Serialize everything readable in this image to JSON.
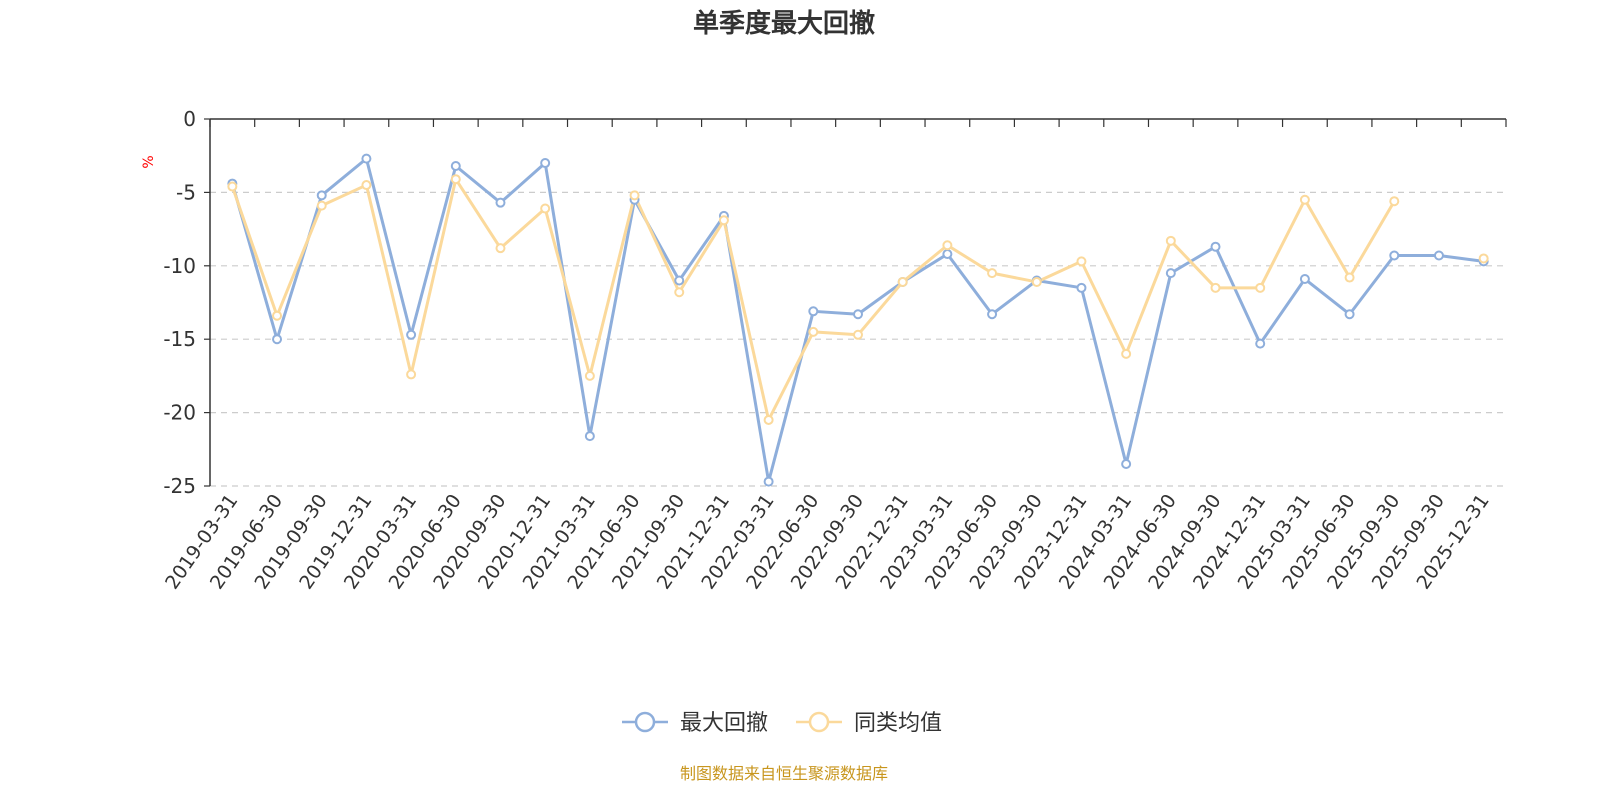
{
  "chart_data": {
    "type": "line",
    "title": "单季度最大回撤",
    "yunit": "%",
    "ylim": [
      -25,
      0
    ],
    "yticks": [
      0,
      -5,
      -10,
      -15,
      -20,
      -25
    ],
    "grid": "horizontal-dashed",
    "legend_position": "bottom",
    "categories": [
      "2019-03-31",
      "2019-06-30",
      "2019-09-30",
      "2019-12-31",
      "2020-03-31",
      "2020-06-30",
      "2020-09-30",
      "2020-12-31",
      "2021-03-31",
      "2021-06-30",
      "2021-09-30",
      "2021-12-31",
      "2022-03-31",
      "2022-06-30",
      "2022-09-30",
      "2022-12-31",
      "2023-03-31",
      "2023-06-30",
      "2023-09-30",
      "2023-12-31",
      "2024-03-31",
      "2024-06-30",
      "2024-09-30",
      "2024-12-31",
      "2025-03-31",
      "2025-06-30",
      "2025-09-30",
      "2025-09-30",
      "2025-12-31"
    ],
    "series": [
      {
        "name": "最大回撤",
        "color": "#8eaedb",
        "values": [
          -4.4,
          -15.0,
          -5.2,
          -2.7,
          -14.7,
          -3.2,
          -5.7,
          -3.0,
          -21.6,
          -5.5,
          -11.0,
          -6.6,
          -24.7,
          -13.1,
          -13.3,
          -11.1,
          -9.2,
          -13.3,
          -11.0,
          -11.5,
          -23.5,
          -10.5,
          -8.7,
          -15.3,
          -10.9,
          -13.3,
          -9.3,
          -9.3,
          -9.7
        ]
      },
      {
        "name": "同类均值",
        "color": "#fbd99b",
        "values": [
          -4.6,
          -13.4,
          -5.9,
          -4.5,
          -17.4,
          -4.1,
          -8.8,
          -6.1,
          -17.5,
          -5.2,
          -11.8,
          -6.9,
          -20.5,
          -14.5,
          -14.7,
          -11.1,
          -8.6,
          -10.5,
          -11.1,
          -9.7,
          -16.0,
          -8.3,
          -11.5,
          -11.5,
          -5.5,
          -10.8,
          -5.6,
          null,
          -9.5
        ]
      }
    ]
  },
  "footer": {
    "source": "制图数据来自恒生聚源数据库"
  }
}
